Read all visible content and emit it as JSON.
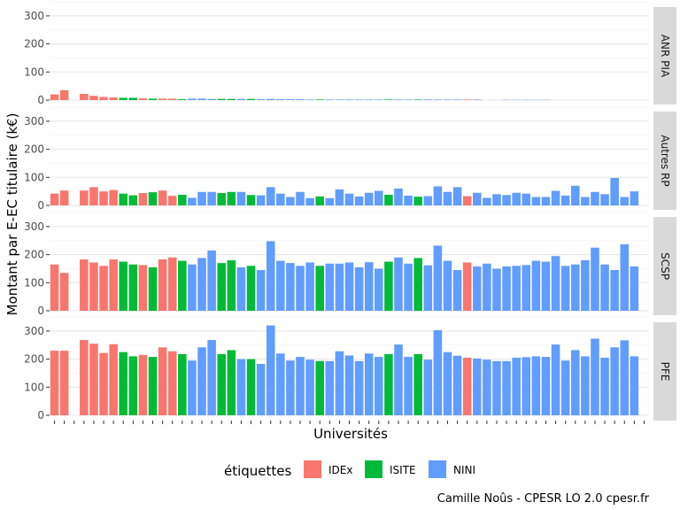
{
  "chart_data": {
    "type": "bar",
    "xlabel": "Universités",
    "ylabel": "Montant par E-EC titulaire (k€)",
    "caption": "Camille Noûs - CPESR LO 2.0 cpesr.fr",
    "ylim": [
      0,
      320
    ],
    "yticks": [
      0,
      100,
      200,
      300
    ],
    "grid": true,
    "legend": {
      "title": "étiquettes",
      "placement": "bottom",
      "entries": [
        {
          "label": "IDEx",
          "color": "#F8766D"
        },
        {
          "label": "ISITE",
          "color": "#00BA38"
        },
        {
          "label": "NINI",
          "color": "#619CFF"
        }
      ]
    },
    "bar_labels": [
      "IDEx",
      "IDEx",
      "IDEx",
      "IDEx",
      "IDEx",
      "IDEx",
      "IDEx",
      "ISITE",
      "ISITE",
      "IDEx",
      "ISITE",
      "IDEx",
      "IDEx",
      "ISITE",
      "NINI",
      "NINI",
      "NINI",
      "ISITE",
      "ISITE",
      "NINI",
      "ISITE",
      "NINI",
      "NINI",
      "NINI",
      "NINI",
      "NINI",
      "NINI",
      "ISITE",
      "NINI",
      "NINI",
      "NINI",
      "NINI",
      "NINI",
      "NINI",
      "ISITE",
      "NINI",
      "NINI",
      "ISITE",
      "NINI",
      "NINI",
      "NINI",
      "NINI",
      "IDEx",
      "NINI",
      "NINI",
      "NINI",
      "NINI",
      "NINI",
      "NINI",
      "NINI",
      "NINI",
      "NINI",
      "NINI",
      "NINI",
      "NINI",
      "NINI",
      "NINI",
      "NINI",
      "NINI"
    ],
    "n_categories": 61,
    "facets": [
      {
        "name": "ANR PIA",
        "values": [
          20,
          35,
          null,
          22,
          15,
          11,
          9,
          8,
          8,
          6,
          5,
          5,
          5,
          3,
          5,
          5,
          4,
          4,
          4,
          4,
          4,
          3,
          4,
          3,
          3,
          3,
          2,
          2,
          2,
          2,
          2,
          2,
          2,
          2,
          2,
          2,
          2,
          2,
          2,
          2,
          2,
          2,
          2,
          2,
          null,
          null,
          1,
          1,
          1,
          1,
          1,
          null,
          null,
          null,
          null,
          null,
          null,
          null,
          null,
          null,
          null
        ]
      },
      {
        "name": "Autres RP",
        "values": [
          42,
          53,
          null,
          53,
          65,
          50,
          55,
          42,
          36,
          44,
          47,
          53,
          34,
          38,
          27,
          48,
          48,
          44,
          48,
          48,
          37,
          36,
          65,
          42,
          30,
          48,
          26,
          32,
          26,
          57,
          42,
          32,
          45,
          52,
          38,
          60,
          35,
          31,
          33,
          68,
          48,
          65,
          33,
          45,
          27,
          40,
          37,
          45,
          42,
          30,
          30,
          52,
          35,
          70,
          30,
          48,
          40,
          98,
          30,
          50,
          null
        ]
      },
      {
        "name": "SCSP",
        "values": [
          165,
          135,
          null,
          183,
          172,
          160,
          183,
          175,
          165,
          163,
          155,
          183,
          190,
          178,
          165,
          188,
          215,
          170,
          180,
          155,
          160,
          145,
          248,
          178,
          170,
          160,
          172,
          160,
          168,
          168,
          172,
          155,
          173,
          150,
          175,
          190,
          168,
          188,
          162,
          232,
          178,
          145,
          172,
          158,
          168,
          150,
          158,
          160,
          163,
          178,
          175,
          195,
          160,
          165,
          180,
          225,
          165,
          145,
          237,
          158,
          null
        ]
      },
      {
        "name": "PFE",
        "values": [
          230,
          230,
          null,
          268,
          255,
          222,
          253,
          225,
          210,
          215,
          208,
          242,
          228,
          218,
          195,
          242,
          268,
          218,
          232,
          200,
          200,
          183,
          320,
          220,
          195,
          208,
          198,
          193,
          193,
          228,
          213,
          193,
          220,
          208,
          218,
          252,
          208,
          218,
          198,
          303,
          225,
          212,
          205,
          202,
          198,
          193,
          193,
          205,
          207,
          210,
          208,
          252,
          195,
          232,
          210,
          273,
          205,
          242,
          267,
          210,
          null
        ]
      }
    ]
  }
}
